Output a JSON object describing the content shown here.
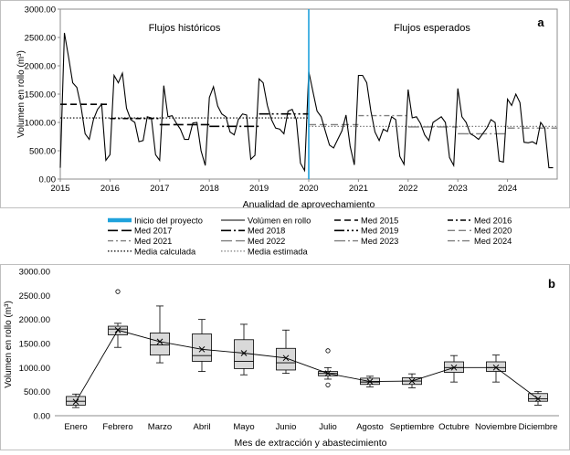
{
  "chart_data": [
    {
      "type": "line",
      "panel_label": "a",
      "xlabel": "Anualidad de aprovechamiento",
      "ylabel": "Volumen en rollo (m³)",
      "ylim": [
        0,
        3000
      ],
      "yticks": [
        "0.00",
        "500.00",
        "1000.00",
        "1500.00",
        "2000.00",
        "2500.00",
        "3000.00"
      ],
      "xticks": [
        "2015",
        "2016",
        "2017",
        "2018",
        "2019",
        "2020",
        "2021",
        "2022",
        "2023",
        "2024"
      ],
      "region_labels": [
        "Flujos históricos",
        "Flujos esperados"
      ],
      "project_start": 2020.0,
      "monthly_series": {
        "name": "Volúmen en rollo",
        "start": 2015.0,
        "step_months": 1,
        "values": [
          200,
          2580,
          2150,
          1700,
          1620,
          1280,
          800,
          700,
          1050,
          1230,
          1320,
          330,
          430,
          1830,
          1700,
          1870,
          1250,
          1050,
          1000,
          660,
          680,
          1100,
          1080,
          430,
          330,
          1650,
          1100,
          1120,
          990,
          880,
          700,
          700,
          990,
          1000,
          500,
          240,
          1440,
          1630,
          1290,
          1150,
          1100,
          830,
          780,
          1050,
          1150,
          1130,
          350,
          420,
          1770,
          1700,
          1300,
          1050,
          900,
          880,
          800,
          1200,
          1230,
          1050,
          280,
          150,
          1900,
          1550,
          1200,
          1100,
          850,
          600,
          550,
          700,
          850,
          1130,
          580,
          250,
          1830,
          1830,
          1700,
          1200,
          830,
          680,
          880,
          840,
          1100,
          1050,
          400,
          260,
          1580,
          1080,
          1100,
          980,
          780,
          680,
          1000,
          1050,
          1100,
          1000,
          380,
          240,
          1600,
          1100,
          1000,
          800,
          760,
          700,
          800,
          900,
          1050,
          1000,
          320,
          300,
          1410,
          1300,
          1500,
          1350,
          650,
          640,
          660,
          620,
          1000,
          900,
          200,
          200
        ]
      },
      "series": [
        {
          "name": "Inicio del proyecto",
          "color": "#1fa2dc",
          "style": "solid-thick"
        },
        {
          "name": "Volúmen en rollo",
          "color": "#000000",
          "style": "solid"
        },
        {
          "name": "Med 2015",
          "style": "dash",
          "value": 1320,
          "range": [
            2015.0,
            2016.0
          ]
        },
        {
          "name": "Med 2016",
          "style": "dashdot",
          "value": 1070,
          "range": [
            2016.0,
            2017.0
          ]
        },
        {
          "name": "Med 2017",
          "style": "longdash",
          "value": 960,
          "range": [
            2017.0,
            2018.0
          ]
        },
        {
          "name": "Med 2018",
          "style": "longdashdot",
          "value": 930,
          "range": [
            2018.0,
            2019.0
          ]
        },
        {
          "name": "Med 2019",
          "style": "longdashdotdot",
          "value": 1150,
          "range": [
            2019.0,
            2020.0
          ]
        },
        {
          "name": "Med 2020",
          "style": "mediumdash",
          "value": 960,
          "range": [
            2020.0,
            2021.0
          ]
        },
        {
          "name": "Med 2021",
          "style": "dashdot-gray",
          "value": 1120,
          "range": [
            2021.0,
            2022.0
          ]
        },
        {
          "name": "Med 2022",
          "style": "longdash-gray",
          "value": 920,
          "range": [
            2022.0,
            2023.0
          ]
        },
        {
          "name": "Med 2023",
          "style": "longdashdot-gray",
          "value": 800,
          "range": [
            2023.0,
            2024.0
          ]
        },
        {
          "name": "Med 2024",
          "style": "dashdot-gray2",
          "value": 900,
          "range": [
            2024.0,
            2025.0
          ]
        },
        {
          "name": "Media calculada",
          "style": "dotted",
          "value": 1080,
          "range": [
            2015.0,
            2020.0
          ]
        },
        {
          "name": "Media estimada",
          "style": "dotted-gray",
          "value": 930,
          "range": [
            2020.0,
            2025.0
          ]
        }
      ]
    },
    {
      "type": "box",
      "panel_label": "b",
      "xlabel": "Mes de extracción y abastecimiento",
      "ylabel": "Volumen en rollo (m³)",
      "ylim": [
        0,
        3000
      ],
      "yticks": [
        "0.00",
        "500.00",
        "1000.00",
        "1500.00",
        "2000.00",
        "2500.00",
        "3000.00"
      ],
      "categories": [
        "Enero",
        "Febrero",
        "Marzo",
        "Abril",
        "Mayo",
        "Junio",
        "Julio",
        "Agosto",
        "Septiembre",
        "Octubre",
        "Noviembre",
        "Diciembre"
      ],
      "boxes": [
        {
          "min": 170,
          "q1": 220,
          "median": 300,
          "q3": 400,
          "max": 450,
          "mean": 290,
          "outliers": []
        },
        {
          "min": 1420,
          "q1": 1680,
          "median": 1800,
          "q3": 1860,
          "max": 1920,
          "mean": 1780,
          "outliers": [
            2580
          ]
        },
        {
          "min": 1100,
          "q1": 1260,
          "median": 1470,
          "q3": 1720,
          "max": 2280,
          "mean": 1540,
          "outliers": []
        },
        {
          "min": 920,
          "q1": 1130,
          "median": 1250,
          "q3": 1700,
          "max": 2000,
          "mean": 1380,
          "outliers": []
        },
        {
          "min": 850,
          "q1": 980,
          "median": 1130,
          "q3": 1580,
          "max": 1900,
          "mean": 1300,
          "outliers": []
        },
        {
          "min": 880,
          "q1": 950,
          "median": 1100,
          "q3": 1400,
          "max": 1780,
          "mean": 1200,
          "outliers": []
        },
        {
          "min": 760,
          "q1": 830,
          "median": 880,
          "q3": 920,
          "max": 1000,
          "mean": 880,
          "outliers": [
            1350,
            640
          ]
        },
        {
          "min": 600,
          "q1": 650,
          "median": 700,
          "q3": 780,
          "max": 820,
          "mean": 710,
          "outliers": []
        },
        {
          "min": 580,
          "q1": 650,
          "median": 720,
          "q3": 790,
          "max": 870,
          "mean": 720,
          "outliers": []
        },
        {
          "min": 700,
          "q1": 900,
          "median": 1000,
          "q3": 1120,
          "max": 1250,
          "mean": 1000,
          "outliers": []
        },
        {
          "min": 700,
          "q1": 920,
          "median": 1000,
          "q3": 1120,
          "max": 1260,
          "mean": 1000,
          "outliers": []
        },
        {
          "min": 220,
          "q1": 300,
          "median": 350,
          "q3": 460,
          "max": 500,
          "mean": 350,
          "outliers": []
        }
      ]
    }
  ]
}
